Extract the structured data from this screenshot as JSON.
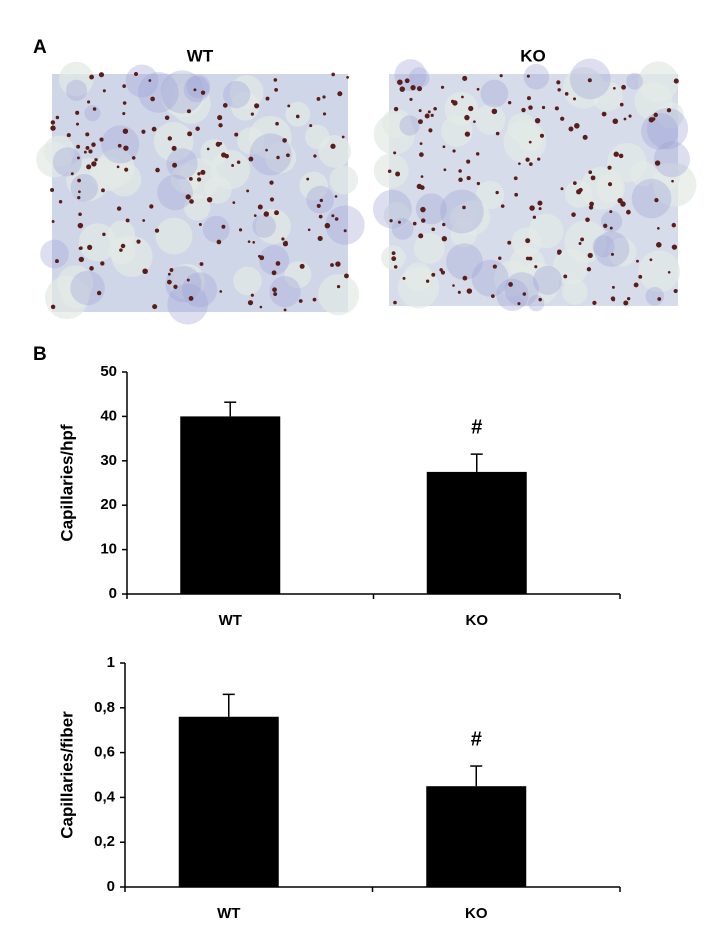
{
  "panel_a": {
    "label": "A",
    "images": [
      {
        "title": "WT"
      },
      {
        "title": "KO"
      }
    ]
  },
  "panel_b": {
    "label": "B"
  },
  "chart_data": [
    {
      "type": "bar",
      "ylabel": "Capillaries/hpf",
      "categories": [
        "WT",
        "KO"
      ],
      "values": [
        40,
        27.5
      ],
      "errors": [
        3.2,
        4
      ],
      "annotations": [
        null,
        "#"
      ],
      "color": "#000000",
      "ylim": [
        0,
        50
      ],
      "yticks": [
        0,
        10,
        20,
        30,
        40,
        50
      ]
    },
    {
      "type": "bar",
      "ylabel": "Capillaries/fiber",
      "categories": [
        "WT",
        "KO"
      ],
      "values": [
        0.76,
        0.45
      ],
      "errors": [
        0.1,
        0.09
      ],
      "annotations": [
        null,
        "#"
      ],
      "color": "#000000",
      "ylim": [
        0,
        1
      ],
      "yticks": [
        0,
        {
          "value": 0.2,
          "label": "0,2"
        },
        {
          "value": 0.4,
          "label": "0,4"
        },
        {
          "value": 0.6,
          "label": "0,6"
        },
        {
          "value": 0.8,
          "label": "0,8"
        },
        1
      ]
    }
  ]
}
